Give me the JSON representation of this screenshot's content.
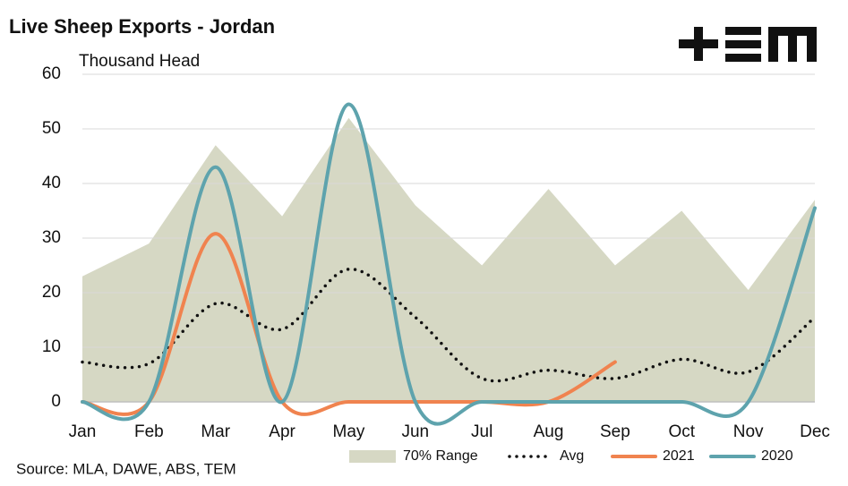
{
  "chart_data": {
    "type": "line",
    "title": "Live Sheep Exports - Jordan",
    "subtitle": "Thousand Head",
    "source": "Source: MLA, DAWE, ABS, TEM",
    "categories": [
      "Jan",
      "Feb",
      "Mar",
      "Apr",
      "May",
      "Jun",
      "Jul",
      "Aug",
      "Sep",
      "Oct",
      "Nov",
      "Dec"
    ],
    "ylim": [
      0,
      60
    ],
    "yticks": [
      0,
      10,
      20,
      30,
      40,
      50,
      60
    ],
    "grid": true,
    "legend": "bottom",
    "series": [
      {
        "name": "70% Range",
        "style": "area",
        "color": "#d6d8c4",
        "values": [
          23,
          29,
          47,
          34,
          52,
          36,
          25,
          39,
          25,
          35,
          20.5,
          37
        ]
      },
      {
        "name": "Avg",
        "style": "dotted",
        "color": "#111111",
        "values": [
          7.3,
          7,
          18,
          13.3,
          24.3,
          15.5,
          4.3,
          5.8,
          4.3,
          7.8,
          5.5,
          15.5
        ]
      },
      {
        "name": "2021",
        "style": "smooth",
        "color": "#f0834f",
        "values": [
          0,
          0,
          30.8,
          0,
          0,
          0,
          0,
          0,
          7.3,
          null,
          null,
          null
        ]
      },
      {
        "name": "2020",
        "style": "smooth",
        "color": "#5ea3ad",
        "values": [
          0,
          0,
          43,
          0,
          54.5,
          0,
          0,
          0,
          0,
          0,
          0,
          35.5
        ]
      }
    ]
  }
}
